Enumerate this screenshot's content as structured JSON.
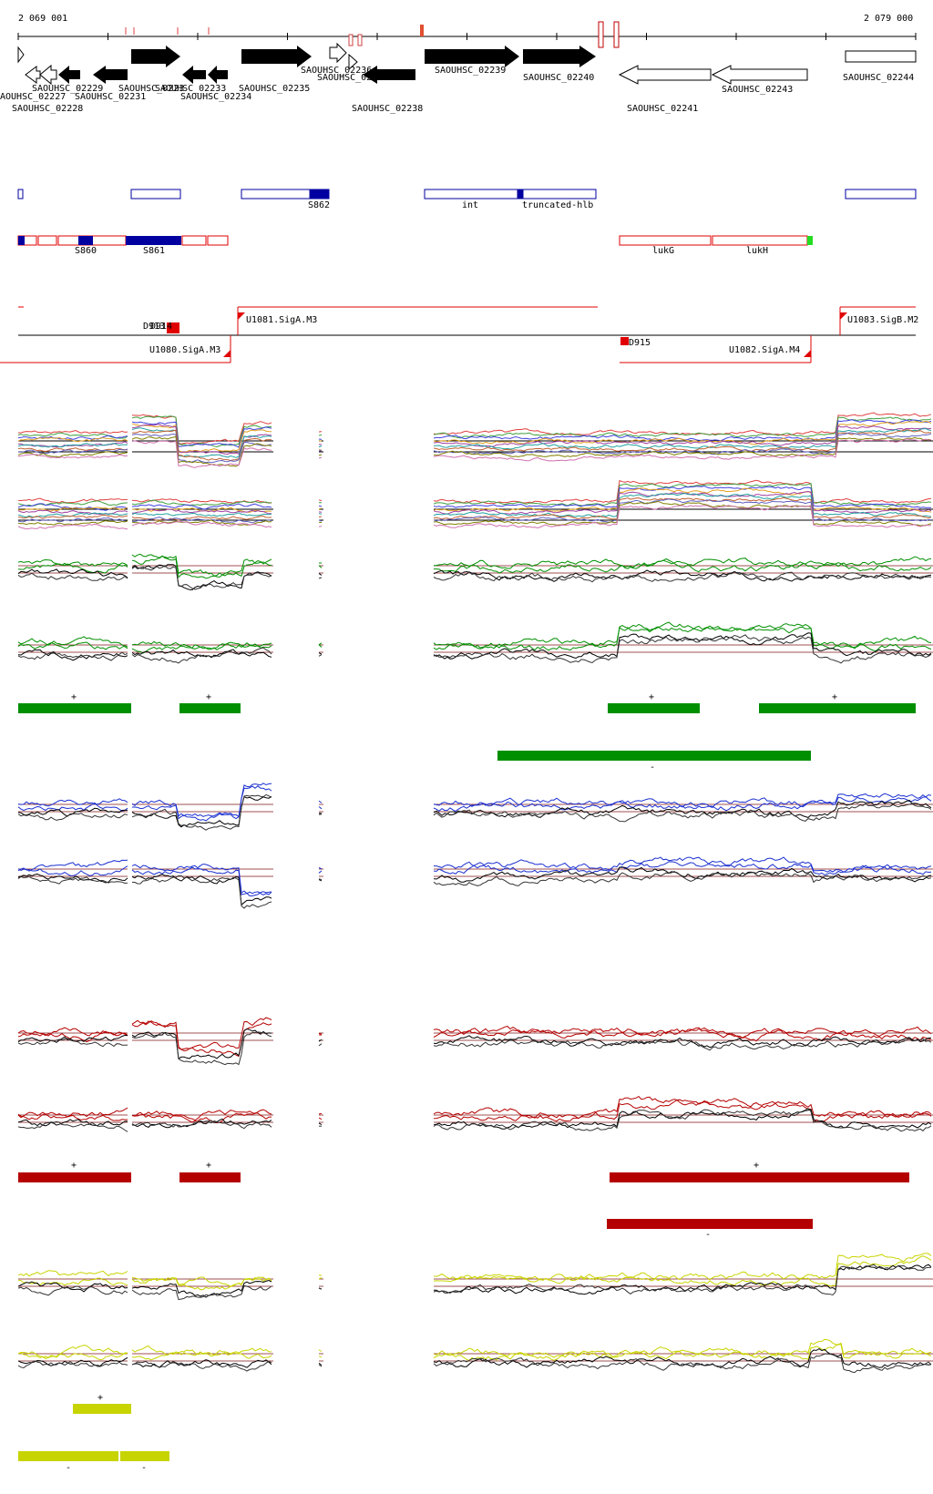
{
  "coordinates": {
    "start": "2 069 001",
    "end": "2 079 000"
  },
  "genes": [
    {
      "name": "SAOUHSC_02227",
      "strand": "-",
      "fill": "white"
    },
    {
      "name": "SAOUHSC_02228",
      "strand": "-",
      "fill": "white"
    },
    {
      "name": "SAOUHSC_02229",
      "strand": "-",
      "fill": "black"
    },
    {
      "name": "SAOUHSC_02231",
      "strand": "-",
      "fill": "black"
    },
    {
      "name": "SAOUHSC_02232",
      "strand": "+",
      "fill": "black"
    },
    {
      "name": "SAOUHSC_02233",
      "strand": "-",
      "fill": "black"
    },
    {
      "name": "SAOUHSC_02234",
      "strand": "-",
      "fill": "black"
    },
    {
      "name": "SAOUHSC_02235",
      "strand": "+",
      "fill": "black"
    },
    {
      "name": "SAOUHSC_02236",
      "strand": "+",
      "fill": "white"
    },
    {
      "name": "SAOUHSC_02237",
      "strand": "+",
      "fill": "white"
    },
    {
      "name": "SAOUHSC_02238",
      "strand": "-",
      "fill": "black"
    },
    {
      "name": "SAOUHSC_02239",
      "strand": "+",
      "fill": "black"
    },
    {
      "name": "SAOUHSC_02240",
      "strand": "+",
      "fill": "black"
    },
    {
      "name": "SAOUHSC_02241",
      "strand": "-",
      "fill": "white"
    },
    {
      "name": "SAOUHSC_02243",
      "strand": "-",
      "fill": "white"
    },
    {
      "name": "SAOUHSC_02244",
      "strand": "+",
      "fill": "white"
    }
  ],
  "gene_labels": {
    "g02227": "SAOUHSC_02227",
    "g02228": "SAOUHSC_02228",
    "g02229": "SAOUHSC_02229",
    "g02231": "SAOUHSC_02231",
    "g0223x": "SAOUHSC_0223",
    "g02233": "SAOUHSC_02233",
    "g02234": "SAOUHSC_02234",
    "g02235": "SAOUHSC_02235",
    "g02236": "SAOUHSC_02236",
    "g02237": "SAOUHSC_02237",
    "g02238": "SAOUHSC_02238",
    "g02239": "SAOUHSC_02239",
    "g02240": "SAOUHSC_02240",
    "g02241": "SAOUHSC_02241",
    "g02243": "SAOUHSC_02243",
    "g02244": "SAOUHSC_02244",
    "left_edge": "AOUHSC_02227"
  },
  "annotations": {
    "blue": [
      "S862",
      "int",
      "truncated-hlb"
    ],
    "red": [
      "S860",
      "S861",
      "lukG",
      "lukH"
    ]
  },
  "promoters": {
    "d914": "D914",
    "d913": "D913",
    "d915": "D915",
    "u1080": "U1080.SigA.M3",
    "u1081": "U1081.SigA.M3",
    "u1082": "U1082.SigA.M4",
    "u1083": "U1083.SigB.M2"
  },
  "segment_labels": {
    "plus": "+",
    "minus": "-"
  },
  "colors": {
    "green": "#008f00",
    "blue": "#1a2fd0",
    "red": "#b50000",
    "yellow": "#c8d400",
    "gene_box_blue": "#0000a0",
    "gene_box_red": "#e00000",
    "promoter": "#ff0000"
  }
}
